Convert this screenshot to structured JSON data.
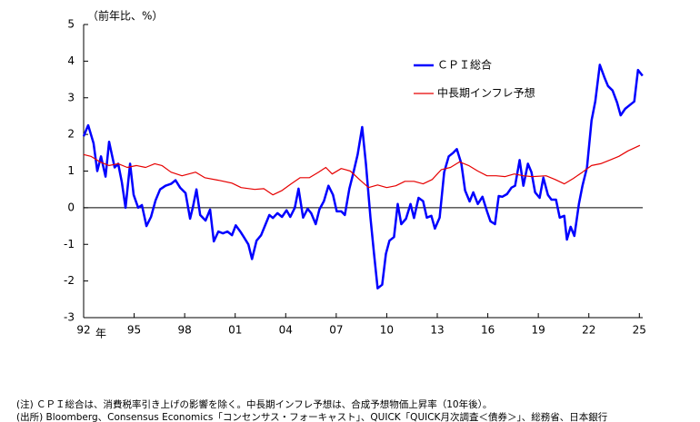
{
  "chart_data": {
    "type": "line",
    "y_label": "（前年比、%）",
    "x_unit": "年",
    "xlim": [
      1992,
      2025.2
    ],
    "xticks": [
      {
        "value": 1992,
        "label": "92"
      },
      {
        "value": 1995,
        "label": "95"
      },
      {
        "value": 1998,
        "label": "98"
      },
      {
        "value": 2001,
        "label": "01"
      },
      {
        "value": 2004,
        "label": "04"
      },
      {
        "value": 2007,
        "label": "07"
      },
      {
        "value": 2010,
        "label": "10"
      },
      {
        "value": 2013,
        "label": "13"
      },
      {
        "value": 2016,
        "label": "16"
      },
      {
        "value": 2019,
        "label": "19"
      },
      {
        "value": 2022,
        "label": "22"
      },
      {
        "value": 2025,
        "label": "25"
      }
    ],
    "ylim": [
      -3,
      5
    ],
    "yticks": [
      -3,
      -2,
      -1,
      0,
      1,
      2,
      3,
      4,
      5
    ],
    "legend": "top-right",
    "series": [
      {
        "name": "ＣＰＩ総合",
        "color": "#0000ff",
        "width": 2.5,
        "x": [
          1992.0,
          1992.27,
          1992.59,
          1992.81,
          1993.03,
          1993.3,
          1993.51,
          1993.84,
          1994.05,
          1994.27,
          1994.49,
          1994.76,
          1994.97,
          1995.24,
          1995.46,
          1995.73,
          1996.0,
          1996.27,
          1996.54,
          1996.86,
          1997.19,
          1997.46,
          1997.73,
          1998.05,
          1998.32,
          1998.49,
          1998.7,
          1998.92,
          1999.24,
          1999.51,
          1999.73,
          2000.0,
          2000.27,
          2000.54,
          2000.81,
          2001.03,
          2001.3,
          2001.51,
          2001.78,
          2002.0,
          2002.27,
          2002.54,
          2002.76,
          2003.03,
          2003.24,
          2003.51,
          2003.78,
          2004.05,
          2004.27,
          2004.54,
          2004.76,
          2005.03,
          2005.3,
          2005.51,
          2005.78,
          2006.0,
          2006.27,
          2006.54,
          2006.81,
          2007.03,
          2007.3,
          2007.51,
          2007.78,
          2008.0,
          2008.27,
          2008.54,
          2008.76,
          2009.03,
          2009.24,
          2009.46,
          2009.73,
          2009.95,
          2010.16,
          2010.43,
          2010.65,
          2010.86,
          2011.14,
          2011.41,
          2011.62,
          2011.89,
          2012.16,
          2012.38,
          2012.65,
          2012.86,
          2013.14,
          2013.41,
          2013.68,
          2013.95,
          2014.16,
          2014.43,
          2014.65,
          2014.92,
          2015.14,
          2015.41,
          2015.68,
          2015.95,
          2016.16,
          2016.43,
          2016.65,
          2016.86,
          2017.14,
          2017.41,
          2017.62,
          2017.89,
          2018.11,
          2018.38,
          2018.59,
          2018.81,
          2019.08,
          2019.3,
          2019.57,
          2019.78,
          2020.05,
          2020.27,
          2020.54,
          2020.7,
          2020.92,
          2021.14,
          2021.41,
          2021.62,
          2021.89,
          2022.16,
          2022.38,
          2022.65,
          2022.92,
          2023.14,
          2023.41,
          2023.68,
          2023.89,
          2024.16,
          2024.43,
          2024.7,
          2024.92,
          2025.19
        ],
        "values": [
          1.95,
          2.25,
          1.76,
          1.0,
          1.4,
          0.85,
          1.8,
          1.1,
          1.2,
          0.7,
          0,
          1.2,
          0.35,
          0.0,
          0.07,
          -0.5,
          -0.25,
          0.2,
          0.5,
          0.6,
          0.65,
          0.75,
          0.55,
          0.4,
          -0.3,
          0.02,
          0.5,
          -0.2,
          -0.35,
          -0.05,
          -0.92,
          -0.65,
          -0.7,
          -0.65,
          -0.75,
          -0.48,
          -0.65,
          -0.8,
          -1.0,
          -1.4,
          -0.9,
          -0.75,
          -0.5,
          -0.2,
          -0.28,
          -0.15,
          -0.25,
          -0.07,
          -0.25,
          0,
          0.52,
          -0.27,
          -0.03,
          -0.15,
          -0.45,
          -0.05,
          0.18,
          0.6,
          0.35,
          -0.1,
          -0.1,
          -0.2,
          0.52,
          0.92,
          1.45,
          2.2,
          1.2,
          -0.27,
          -1.25,
          -2.2,
          -2.1,
          -1.26,
          -0.9,
          -0.8,
          0.1,
          -0.45,
          -0.3,
          0.1,
          -0.28,
          0.27,
          0.18,
          -0.27,
          -0.22,
          -0.57,
          -0.27,
          0.97,
          1.4,
          1.5,
          1.6,
          1.2,
          0.47,
          0.17,
          0.42,
          0.1,
          0.3,
          -0.1,
          -0.37,
          -0.45,
          0.32,
          0.3,
          0.37,
          0.55,
          0.6,
          1.3,
          0.6,
          1.2,
          0.97,
          0.42,
          0.27,
          0.82,
          0.35,
          0.22,
          0.22,
          -0.27,
          -0.22,
          -0.87,
          -0.52,
          -0.77,
          0.1,
          0.6,
          1.1,
          2.38,
          2.9,
          3.9,
          3.56,
          3.32,
          3.2,
          2.87,
          2.52,
          2.7,
          2.8,
          2.9,
          3.76,
          3.6
        ]
      },
      {
        "name": "中長期インフレ予想",
        "color": "#e60000",
        "width": 1.2,
        "x": [
          1992.0,
          1992.43,
          1992.97,
          1993.51,
          1994.05,
          1994.59,
          1995.14,
          1995.68,
          1996.22,
          1996.65,
          1997.19,
          1997.84,
          1998.65,
          1999.19,
          2000.0,
          2000.81,
          2001.35,
          2002.16,
          2002.7,
          2003.24,
          2003.78,
          2004.32,
          2004.86,
          2005.41,
          2005.95,
          2006.38,
          2006.76,
          2007.3,
          2007.84,
          2008.38,
          2008.92,
          2009.46,
          2010.0,
          2010.54,
          2011.08,
          2011.62,
          2012.16,
          2012.7,
          2013.24,
          2013.78,
          2014.32,
          2014.86,
          2015.41,
          2015.95,
          2016.49,
          2017.03,
          2017.57,
          2018.11,
          2018.65,
          2019.46,
          2020.0,
          2020.54,
          2021.08,
          2021.62,
          2022.16,
          2022.7,
          2023.24,
          2023.78,
          2024.32,
          2025.03
        ],
        "values": [
          1.45,
          1.4,
          1.25,
          1.15,
          1.2,
          1.1,
          1.15,
          1.1,
          1.2,
          1.15,
          0.97,
          0.87,
          0.97,
          0.82,
          0.75,
          0.67,
          0.55,
          0.5,
          0.52,
          0.35,
          0.47,
          0.65,
          0.82,
          0.82,
          0.97,
          1.1,
          0.92,
          1.07,
          1.0,
          0.77,
          0.55,
          0.62,
          0.55,
          0.6,
          0.72,
          0.72,
          0.65,
          0.77,
          1.04,
          1.1,
          1.25,
          1.15,
          1.0,
          0.87,
          0.87,
          0.85,
          0.92,
          0.87,
          0.85,
          0.87,
          0.77,
          0.65,
          0.8,
          0.97,
          1.15,
          1.2,
          1.3,
          1.4,
          1.55,
          1.7
        ]
      }
    ],
    "notes": [
      "(注) ＣＰＩ総合は、消費税率引き上げの影響を除く。中長期インフレ予想は、合成予想物価上昇率（10年後）。",
      "(出所) Bloomberg、Consensus Economics「コンセンサス・フォーキャスト」、QUICK「QUICK月次調査＜債券＞」、総務省、日本銀行"
    ]
  }
}
